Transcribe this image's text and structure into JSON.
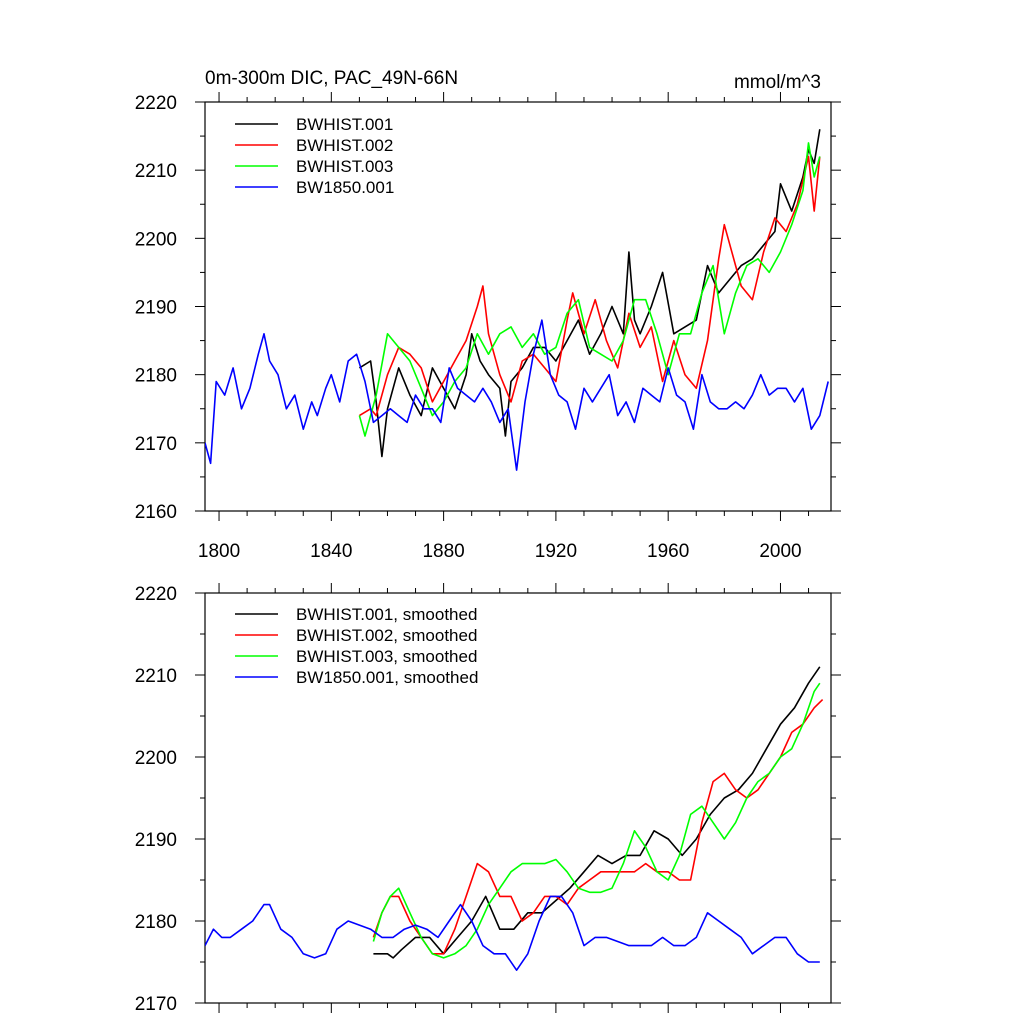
{
  "chart_data": [
    {
      "type": "line",
      "title": "0m-300m DIC, PAC_49N-66N",
      "units": "mmol/m^3",
      "xlim": [
        1795,
        2018
      ],
      "ylim": [
        2160,
        2220
      ],
      "xticks": [
        1800,
        1840,
        1880,
        1920,
        1960,
        2000
      ],
      "yticks": [
        2160,
        2170,
        2180,
        2190,
        2200,
        2210,
        2220
      ],
      "legend": "top-left",
      "series": [
        {
          "name": "BWHIST.001",
          "color": "#000000",
          "x": [
            1850,
            1854,
            1856,
            1858,
            1860,
            1864,
            1868,
            1872,
            1876,
            1880,
            1884,
            1888,
            1890,
            1893,
            1896,
            1900,
            1902,
            1904,
            1908,
            1912,
            1916,
            1920,
            1924,
            1928,
            1932,
            1936,
            1940,
            1944,
            1946,
            1948,
            1950,
            1954,
            1958,
            1962,
            1966,
            1970,
            1974,
            1978,
            1982,
            1986,
            1990,
            1994,
            1998,
            2000,
            2004,
            2008,
            2010,
            2012,
            2014
          ],
          "y": [
            2181,
            2182,
            2176,
            2168,
            2175,
            2181,
            2177,
            2174,
            2181,
            2178,
            2175,
            2180,
            2186,
            2182,
            2180,
            2178,
            2171,
            2179,
            2181,
            2184,
            2184,
            2182,
            2185,
            2188,
            2183,
            2186,
            2190,
            2186,
            2198,
            2188,
            2186,
            2190,
            2195,
            2186,
            2187,
            2188,
            2196,
            2192,
            2194,
            2196,
            2197,
            2199,
            2201,
            2208,
            2204,
            2209,
            2213,
            2211,
            2216
          ]
        },
        {
          "name": "BWHIST.002",
          "color": "#ff0000",
          "x": [
            1850,
            1854,
            1856,
            1860,
            1864,
            1868,
            1872,
            1876,
            1880,
            1884,
            1888,
            1892,
            1894,
            1896,
            1900,
            1904,
            1908,
            1912,
            1916,
            1920,
            1924,
            1926,
            1930,
            1934,
            1938,
            1942,
            1946,
            1950,
            1954,
            1958,
            1962,
            1966,
            1970,
            1974,
            1978,
            1980,
            1984,
            1986,
            1990,
            1994,
            1998,
            2002,
            2006,
            2010,
            2012,
            2014
          ],
          "y": [
            2174,
            2175,
            2174,
            2180,
            2184,
            2183,
            2181,
            2176,
            2179,
            2182,
            2185,
            2190,
            2193,
            2186,
            2180,
            2176,
            2182,
            2183,
            2181,
            2179,
            2188,
            2192,
            2186,
            2191,
            2185,
            2181,
            2189,
            2184,
            2187,
            2179,
            2185,
            2180,
            2178,
            2185,
            2197,
            2202,
            2196,
            2193,
            2191,
            2198,
            2203,
            2201,
            2205,
            2212,
            2204,
            2212
          ]
        },
        {
          "name": "BWHIST.003",
          "color": "#00ff00",
          "x": [
            1850,
            1852,
            1856,
            1860,
            1864,
            1868,
            1872,
            1876,
            1880,
            1884,
            1888,
            1892,
            1896,
            1900,
            1904,
            1908,
            1912,
            1916,
            1920,
            1924,
            1928,
            1932,
            1936,
            1940,
            1944,
            1948,
            1952,
            1956,
            1960,
            1964,
            1968,
            1972,
            1976,
            1980,
            1984,
            1988,
            1992,
            1996,
            2000,
            2004,
            2008,
            2010,
            2012,
            2014
          ],
          "y": [
            2174,
            2171,
            2177,
            2186,
            2184,
            2182,
            2178,
            2174,
            2176,
            2179,
            2181,
            2186,
            2183,
            2186,
            2187,
            2184,
            2186,
            2183,
            2184,
            2189,
            2191,
            2184,
            2183,
            2182,
            2185,
            2191,
            2191,
            2186,
            2180,
            2186,
            2186,
            2192,
            2196,
            2186,
            2192,
            2196,
            2197,
            2195,
            2198,
            2202,
            2207,
            2214,
            2209,
            2212
          ]
        },
        {
          "name": "BW1850.001",
          "color": "#0000ff",
          "x": [
            1795,
            1797,
            1799,
            1802,
            1805,
            1808,
            1811,
            1814,
            1816,
            1818,
            1821,
            1824,
            1827,
            1830,
            1833,
            1835,
            1838,
            1840,
            1843,
            1846,
            1849,
            1852,
            1855,
            1858,
            1861,
            1864,
            1867,
            1870,
            1873,
            1876,
            1879,
            1882,
            1885,
            1888,
            1891,
            1894,
            1897,
            1900,
            1903,
            1906,
            1909,
            1912,
            1915,
            1918,
            1921,
            1924,
            1927,
            1930,
            1933,
            1936,
            1939,
            1942,
            1945,
            1948,
            1951,
            1954,
            1957,
            1960,
            1963,
            1966,
            1969,
            1972,
            1975,
            1978,
            1981,
            1984,
            1987,
            1990,
            1993,
            1996,
            1999,
            2002,
            2005,
            2008,
            2011,
            2014,
            2017
          ],
          "y": [
            2170,
            2167,
            2179,
            2177,
            2181,
            2175,
            2178,
            2183,
            2186,
            2182,
            2180,
            2175,
            2177,
            2172,
            2176,
            2174,
            2178,
            2180,
            2176,
            2182,
            2183,
            2179,
            2173,
            2174,
            2175,
            2174,
            2173,
            2177,
            2175,
            2175,
            2173,
            2181,
            2178,
            2177,
            2176,
            2178,
            2176,
            2173,
            2175,
            2166,
            2176,
            2183,
            2188,
            2180,
            2177,
            2176,
            2172,
            2178,
            2176,
            2178,
            2180,
            2174,
            2176,
            2173,
            2178,
            2177,
            2176,
            2181,
            2177,
            2176,
            2172,
            2180,
            2176,
            2175,
            2175,
            2176,
            2175,
            2177,
            2180,
            2177,
            2178,
            2178,
            2176,
            2178,
            2172,
            2174,
            2179
          ]
        }
      ]
    },
    {
      "type": "line",
      "xlim": [
        1795,
        2018
      ],
      "ylim": [
        2170,
        2220
      ],
      "xticks": [
        1800,
        1840,
        1880,
        1920,
        1960,
        2000
      ],
      "yticks": [
        2170,
        2180,
        2190,
        2200,
        2210,
        2220
      ],
      "legend": "top-left",
      "series": [
        {
          "name": "BWHIST.001, smoothed",
          "color": "#000000",
          "x": [
            1855,
            1860,
            1862,
            1865,
            1870,
            1875,
            1880,
            1885,
            1890,
            1895,
            1900,
            1905,
            1910,
            1915,
            1920,
            1925,
            1930,
            1935,
            1940,
            1945,
            1950,
            1955,
            1960,
            1965,
            1970,
            1975,
            1980,
            1985,
            1990,
            1995,
            2000,
            2005,
            2010,
            2014
          ],
          "y": [
            2176,
            2176,
            2175.5,
            2176.5,
            2178,
            2178,
            2176,
            2178,
            2180,
            2183,
            2179,
            2179,
            2181,
            2181,
            2182.5,
            2184,
            2186,
            2188,
            2187,
            2188,
            2188,
            2191,
            2190,
            2188,
            2190,
            2193,
            2195,
            2196,
            2198,
            2201,
            2204,
            2206,
            2209,
            2211
          ]
        },
        {
          "name": "BWHIST.002, smoothed",
          "color": "#ff0000",
          "x": [
            1855,
            1858,
            1861,
            1864,
            1868,
            1872,
            1876,
            1880,
            1884,
            1888,
            1892,
            1896,
            1900,
            1904,
            1908,
            1912,
            1916,
            1920,
            1924,
            1928,
            1932,
            1936,
            1940,
            1944,
            1948,
            1952,
            1956,
            1960,
            1964,
            1968,
            1972,
            1976,
            1980,
            1984,
            1988,
            1992,
            1996,
            2000,
            2004,
            2008,
            2012,
            2015
          ],
          "y": [
            2178,
            2181,
            2183,
            2183,
            2180,
            2178,
            2176,
            2176,
            2179,
            2183,
            2187,
            2186,
            2183,
            2183,
            2180,
            2181,
            2183,
            2183,
            2182,
            2184,
            2185,
            2186,
            2186,
            2186,
            2186,
            2187,
            2186,
            2186,
            2185,
            2185,
            2192,
            2197,
            2198,
            2196,
            2195,
            2196,
            2198,
            2200,
            2203,
            2204,
            2206,
            2207
          ]
        },
        {
          "name": "BWHIST.003, smoothed",
          "color": "#00ff00",
          "x": [
            1855,
            1858,
            1861,
            1864,
            1868,
            1872,
            1876,
            1880,
            1884,
            1888,
            1892,
            1896,
            1900,
            1904,
            1908,
            1912,
            1916,
            1920,
            1924,
            1928,
            1932,
            1936,
            1940,
            1944,
            1948,
            1952,
            1956,
            1960,
            1964,
            1968,
            1972,
            1976,
            1980,
            1984,
            1988,
            1992,
            1996,
            2000,
            2004,
            2008,
            2012,
            2014
          ],
          "y": [
            2177.5,
            2181,
            2183,
            2184,
            2181,
            2178,
            2176,
            2175.5,
            2176,
            2177,
            2179,
            2182,
            2184,
            2186,
            2187,
            2187,
            2187,
            2187.5,
            2186,
            2184,
            2183.5,
            2183.5,
            2184,
            2187,
            2191,
            2189,
            2186,
            2185,
            2188,
            2193,
            2194,
            2192,
            2190,
            2192,
            2195,
            2197,
            2198,
            2200,
            2201,
            2204,
            2208,
            2209
          ]
        },
        {
          "name": "BW1850.001, smoothed",
          "color": "#0000ff",
          "x": [
            1795,
            1798,
            1801,
            1804,
            1808,
            1812,
            1816,
            1818,
            1822,
            1826,
            1830,
            1834,
            1838,
            1842,
            1846,
            1850,
            1854,
            1858,
            1862,
            1866,
            1870,
            1874,
            1878,
            1882,
            1886,
            1890,
            1894,
            1898,
            1902,
            1906,
            1910,
            1914,
            1918,
            1922,
            1926,
            1930,
            1934,
            1938,
            1942,
            1946,
            1950,
            1954,
            1958,
            1962,
            1966,
            1970,
            1974,
            1978,
            1982,
            1986,
            1990,
            1994,
            1998,
            2002,
            2006,
            2010,
            2014
          ],
          "y": [
            2177,
            2179,
            2178,
            2178,
            2179,
            2180,
            2182,
            2182,
            2179,
            2178,
            2176,
            2175.5,
            2176,
            2179,
            2180,
            2179.5,
            2179,
            2178,
            2178,
            2179,
            2179.5,
            2179,
            2178,
            2180,
            2182,
            2180,
            2177,
            2176,
            2176,
            2174,
            2176,
            2180,
            2183,
            2183,
            2181,
            2177,
            2178,
            2178,
            2177.5,
            2177,
            2177,
            2177,
            2178,
            2177,
            2177,
            2178,
            2181,
            2180,
            2179,
            2178,
            2176,
            2177,
            2178,
            2178,
            2176,
            2175,
            2175
          ]
        }
      ]
    }
  ]
}
